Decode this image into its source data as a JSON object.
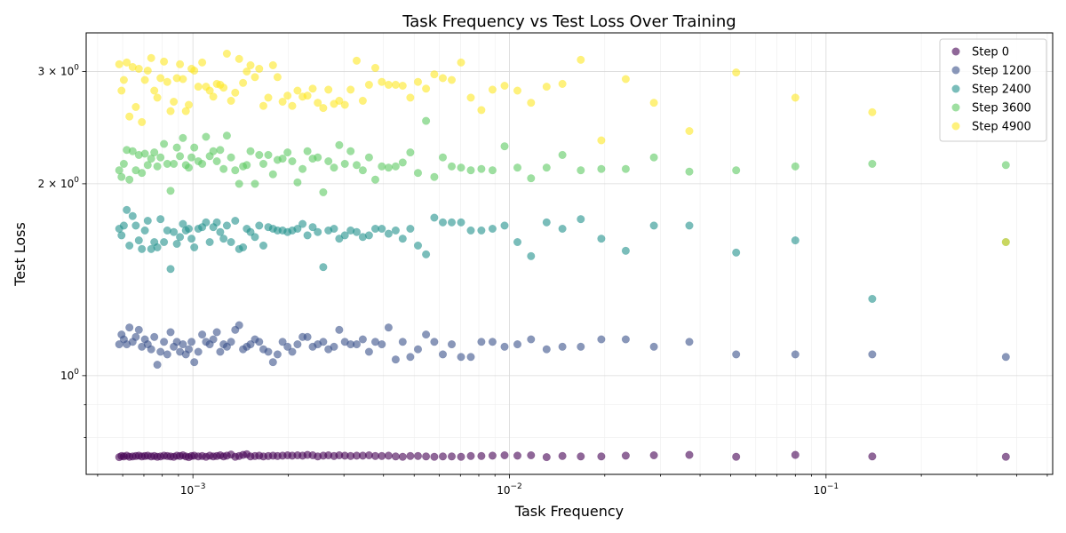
{
  "chart_data": {
    "type": "scatter",
    "title": "Task Frequency vs Test Loss Over Training",
    "xlabel": "Task Frequency",
    "ylabel": "Test Loss",
    "xscale": "log",
    "yscale": "log",
    "xlim": [
      0.00046,
      0.52
    ],
    "ylim": [
      0.7,
      3.45
    ],
    "x_major_ticks": [
      {
        "value": 0.001,
        "base": "10",
        "exp": "−3"
      },
      {
        "value": 0.01,
        "base": "10",
        "exp": "−2"
      },
      {
        "value": 0.1,
        "base": "10",
        "exp": "−1"
      }
    ],
    "y_major_ticks": [
      {
        "value": 1,
        "label": "10",
        "exp": "0"
      },
      {
        "value": 2,
        "label": "2 × 10",
        "exp": "0"
      },
      {
        "value": 3,
        "label": "3 × 10",
        "exp": "0"
      }
    ],
    "grid": true,
    "legend_position": "top-right",
    "x": [
      0.000585,
      0.000595,
      0.000605,
      0.000618,
      0.00063,
      0.000645,
      0.00066,
      0.000675,
      0.00069,
      0.000705,
      0.00072,
      0.000738,
      0.000755,
      0.000772,
      0.00079,
      0.00081,
      0.00083,
      0.00085,
      0.00087,
      0.00089,
      0.00091,
      0.00093,
      0.00095,
      0.00097,
      0.00099,
      0.00101,
      0.00104,
      0.00107,
      0.0011,
      0.00113,
      0.00116,
      0.00119,
      0.00122,
      0.00125,
      0.00128,
      0.00132,
      0.00136,
      0.0014,
      0.00144,
      0.00148,
      0.00152,
      0.00157,
      0.00162,
      0.00167,
      0.00173,
      0.00179,
      0.00185,
      0.00192,
      0.00199,
      0.00206,
      0.00214,
      0.00222,
      0.0023,
      0.00239,
      0.00248,
      0.00258,
      0.00268,
      0.00279,
      0.0029,
      0.00302,
      0.00315,
      0.00329,
      0.00344,
      0.0036,
      0.00377,
      0.00395,
      0.00415,
      0.00437,
      0.0046,
      0.00486,
      0.00514,
      0.00545,
      0.00579,
      0.00616,
      0.00657,
      0.00703,
      0.00755,
      0.00815,
      0.00884,
      0.00965,
      0.0106,
      0.0117,
      0.0131,
      0.0147,
      0.0168,
      0.0195,
      0.0233,
      0.0286,
      0.037,
      0.052,
      0.08,
      0.14,
      0.37
    ],
    "series": [
      {
        "name": "Step 0",
        "color": "#440154",
        "y": [
          0.745,
          0.748,
          0.747,
          0.749,
          0.746,
          0.747,
          0.748,
          0.749,
          0.747,
          0.748,
          0.749,
          0.747,
          0.748,
          0.746,
          0.747,
          0.749,
          0.748,
          0.747,
          0.746,
          0.749,
          0.748,
          0.75,
          0.747,
          0.745,
          0.748,
          0.749,
          0.747,
          0.748,
          0.746,
          0.749,
          0.747,
          0.748,
          0.75,
          0.747,
          0.749,
          0.752,
          0.746,
          0.748,
          0.751,
          0.753,
          0.747,
          0.748,
          0.749,
          0.747,
          0.748,
          0.749,
          0.748,
          0.749,
          0.75,
          0.749,
          0.75,
          0.749,
          0.751,
          0.75,
          0.747,
          0.749,
          0.75,
          0.748,
          0.75,
          0.749,
          0.748,
          0.749,
          0.749,
          0.75,
          0.748,
          0.748,
          0.749,
          0.747,
          0.746,
          0.748,
          0.748,
          0.747,
          0.746,
          0.747,
          0.747,
          0.746,
          0.748,
          0.748,
          0.749,
          0.75,
          0.749,
          0.75,
          0.745,
          0.748,
          0.747,
          0.747,
          0.749,
          0.75,
          0.751,
          0.746,
          0.751,
          0.747,
          0.746
        ]
      },
      {
        "name": "Step 1200",
        "color": "#3b528b",
        "y": [
          1.12,
          1.16,
          1.14,
          1.12,
          1.19,
          1.13,
          1.15,
          1.18,
          1.11,
          1.14,
          1.12,
          1.1,
          1.15,
          1.04,
          1.09,
          1.13,
          1.08,
          1.17,
          1.11,
          1.13,
          1.09,
          1.12,
          1.08,
          1.1,
          1.13,
          1.05,
          1.09,
          1.16,
          1.13,
          1.12,
          1.14,
          1.17,
          1.09,
          1.12,
          1.11,
          1.13,
          1.18,
          1.2,
          1.1,
          1.11,
          1.12,
          1.14,
          1.13,
          1.1,
          1.09,
          1.05,
          1.08,
          1.13,
          1.11,
          1.09,
          1.12,
          1.15,
          1.15,
          1.11,
          1.12,
          1.13,
          1.1,
          1.11,
          1.18,
          1.13,
          1.12,
          1.12,
          1.14,
          1.09,
          1.13,
          1.12,
          1.19,
          1.06,
          1.13,
          1.07,
          1.1,
          1.16,
          1.13,
          1.08,
          1.12,
          1.07,
          1.07,
          1.13,
          1.13,
          1.11,
          1.12,
          1.14,
          1.1,
          1.11,
          1.11,
          1.14,
          1.14,
          1.11,
          1.13,
          1.08,
          1.08,
          1.08,
          1.07
        ]
      },
      {
        "name": "Step 2400",
        "color": "#21918c",
        "y": [
          1.7,
          1.66,
          1.72,
          1.82,
          1.6,
          1.78,
          1.72,
          1.63,
          1.58,
          1.69,
          1.75,
          1.58,
          1.62,
          1.59,
          1.76,
          1.62,
          1.69,
          1.47,
          1.68,
          1.61,
          1.65,
          1.73,
          1.69,
          1.7,
          1.64,
          1.59,
          1.7,
          1.71,
          1.74,
          1.62,
          1.71,
          1.74,
          1.68,
          1.64,
          1.72,
          1.62,
          1.75,
          1.58,
          1.59,
          1.7,
          1.68,
          1.65,
          1.72,
          1.6,
          1.71,
          1.7,
          1.69,
          1.69,
          1.68,
          1.69,
          1.7,
          1.73,
          1.66,
          1.71,
          1.68,
          1.48,
          1.69,
          1.7,
          1.64,
          1.66,
          1.69,
          1.68,
          1.65,
          1.66,
          1.7,
          1.7,
          1.67,
          1.69,
          1.64,
          1.7,
          1.6,
          1.55,
          1.77,
          1.74,
          1.74,
          1.74,
          1.69,
          1.69,
          1.7,
          1.72,
          1.62,
          1.54,
          1.74,
          1.7,
          1.76,
          1.64,
          1.57,
          1.72,
          1.72,
          1.56,
          1.63,
          1.32,
          1.62
        ]
      },
      {
        "name": "Step 3600",
        "color": "#5ec962",
        "y": [
          2.1,
          2.05,
          2.15,
          2.26,
          2.03,
          2.25,
          2.1,
          2.22,
          2.08,
          2.23,
          2.14,
          2.19,
          2.24,
          2.13,
          2.2,
          2.31,
          2.15,
          1.95,
          2.15,
          2.28,
          2.21,
          2.36,
          2.14,
          2.12,
          2.2,
          2.28,
          2.17,
          2.15,
          2.37,
          2.21,
          2.25,
          2.17,
          2.26,
          2.11,
          2.38,
          2.2,
          2.1,
          2.0,
          2.13,
          2.14,
          2.25,
          2.0,
          2.22,
          2.15,
          2.22,
          2.07,
          2.18,
          2.19,
          2.24,
          2.17,
          2.01,
          2.11,
          2.25,
          2.19,
          2.2,
          1.94,
          2.17,
          2.12,
          2.3,
          2.15,
          2.25,
          2.14,
          2.1,
          2.2,
          2.03,
          2.13,
          2.12,
          2.13,
          2.16,
          2.24,
          2.08,
          2.51,
          2.05,
          2.2,
          2.13,
          2.12,
          2.1,
          2.11,
          2.1,
          2.29,
          2.12,
          2.04,
          2.12,
          2.22,
          2.1,
          2.11,
          2.11,
          2.2,
          2.09,
          2.1,
          2.13,
          2.15,
          2.14
        ]
      },
      {
        "name": "Step 4900",
        "color": "#fde725",
        "y": [
          3.08,
          2.8,
          2.91,
          3.1,
          2.55,
          3.05,
          2.64,
          3.03,
          2.5,
          2.91,
          3.01,
          3.15,
          2.8,
          2.73,
          2.93,
          3.11,
          2.89,
          2.6,
          2.69,
          2.93,
          3.08,
          2.92,
          2.6,
          2.66,
          3.03,
          3.01,
          2.84,
          3.1,
          2.84,
          2.8,
          2.74,
          2.87,
          2.86,
          2.83,
          3.2,
          2.7,
          2.78,
          3.14,
          2.88,
          3.0,
          3.07,
          2.94,
          3.03,
          2.65,
          2.73,
          3.07,
          2.94,
          2.69,
          2.75,
          2.65,
          2.8,
          2.74,
          2.75,
          2.82,
          2.68,
          2.63,
          2.81,
          2.67,
          2.7,
          2.66,
          2.81,
          3.12,
          2.7,
          2.86,
          3.04,
          2.89,
          2.86,
          2.86,
          2.85,
          2.73,
          2.89,
          2.82,
          2.97,
          2.93,
          2.91,
          3.1,
          2.73,
          2.61,
          2.81,
          2.85,
          2.8,
          2.68,
          2.84,
          2.87,
          3.13,
          2.34,
          2.92,
          2.68,
          2.42,
          2.99,
          2.73,
          2.59,
          1.62
        ]
      }
    ]
  }
}
